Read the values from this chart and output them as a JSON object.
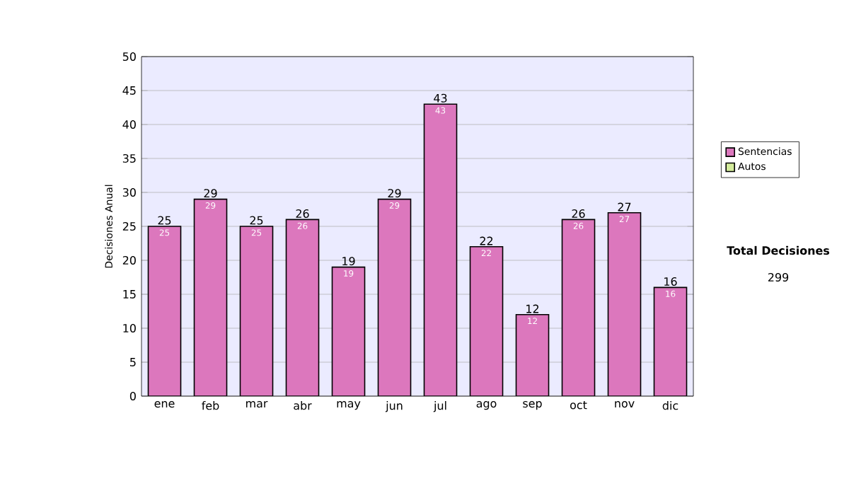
{
  "chart_data": {
    "type": "bar",
    "stacked": true,
    "ylabel": "Decisiones Anual",
    "categories": [
      "ene",
      "feb",
      "mar",
      "abr",
      "may",
      "jun",
      "jul",
      "ago",
      "sep",
      "oct",
      "nov",
      "dic"
    ],
    "series": [
      {
        "name": "Sentencias",
        "color": "#dc77bd",
        "values": [
          25,
          29,
          25,
          26,
          19,
          29,
          43,
          22,
          12,
          26,
          27,
          16
        ],
        "value_labels": [
          "25",
          "29",
          "25",
          "26",
          "19",
          "29",
          "43",
          "22",
          "12",
          "26",
          "27",
          "16"
        ]
      },
      {
        "name": "Autos",
        "color": "#d4ec9c",
        "values": [
          0,
          0,
          0,
          0,
          0,
          0,
          0,
          0,
          0,
          0,
          0,
          0
        ]
      }
    ],
    "ylim": [
      0,
      50
    ],
    "yticks": [
      0,
      5,
      10,
      15,
      20,
      25,
      30,
      35,
      40,
      45,
      50
    ],
    "grid": "y",
    "legend": "right",
    "totals": [
      "25",
      "29",
      "25",
      "26",
      "19",
      "29",
      "43",
      "22",
      "12",
      "26",
      "27",
      "16"
    ],
    "annotations": [
      "Total Decisiones",
      "299"
    ]
  }
}
